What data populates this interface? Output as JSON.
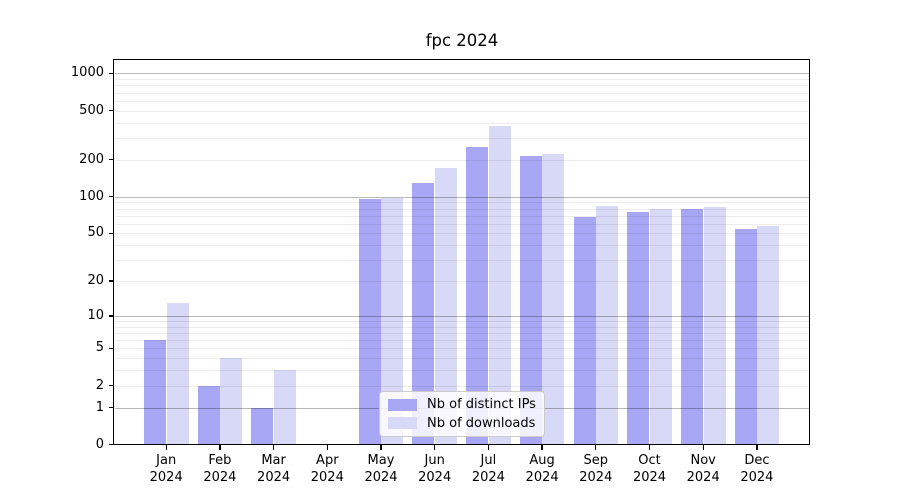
{
  "chart_data": {
    "type": "bar",
    "title": "fpc 2024",
    "y_scale": "log-like (position proportional to log10(1+value), 0 at baseline)",
    "grid": true,
    "legend_position": "lower center-left, inside plot",
    "categories": [
      "Jan 2024",
      "Feb 2024",
      "Mar 2024",
      "Apr 2024",
      "May 2024",
      "Jun 2024",
      "Jul 2024",
      "Aug 2024",
      "Sep 2024",
      "Oct 2024",
      "Nov 2024",
      "Dec 2024"
    ],
    "series": [
      {
        "name": "Nb of distinct IPs",
        "color": "#a7a7f5",
        "values": [
          6,
          2,
          1,
          0,
          95,
          130,
          253,
          215,
          68,
          75,
          79,
          54
        ]
      },
      {
        "name": "Nb of downloads",
        "color": "#d8d8f7",
        "values": [
          13,
          4,
          3,
          0,
          97,
          170,
          375,
          224,
          84,
          80,
          82,
          57
        ]
      }
    ],
    "yticks": [
      1000,
      500,
      200,
      100,
      50,
      20,
      10,
      5,
      2,
      1,
      0
    ],
    "ylim": [
      0,
      1300
    ]
  },
  "colors": {
    "background": "#ffffff",
    "spine": "#000000",
    "major_grid": "rgba(0,0,0,0.28)",
    "minor_grid": "rgba(0,0,0,0.075)",
    "text": "#000000",
    "legend_border": "#cccccc",
    "legend_background": "rgba(255,255,255,0.82)"
  }
}
